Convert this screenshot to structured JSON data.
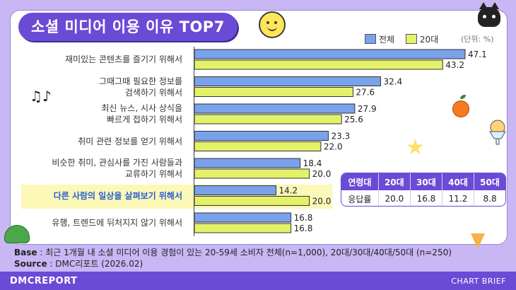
{
  "title": "소셜 미디어 이용 이유 TOP7",
  "legend": {
    "total": "전체",
    "twenties": "20대",
    "unit": "(단위: %)"
  },
  "colors": {
    "total": "#7aa2ea",
    "twenties": "#e4f26a",
    "accent": "#6a4bd6",
    "highlight": "#2d5fd0"
  },
  "chart_data": {
    "type": "bar",
    "orientation": "horizontal",
    "categories": [
      [
        "재미있는 콘텐츠를 즐기기 위해서"
      ],
      [
        "그때그때 필요한 정보를",
        "검색하기 위해서"
      ],
      [
        "최신 뉴스, 시사 상식을",
        "빠르게 접하기 위해서"
      ],
      [
        "취미 관련 정보를 얻기 위해서"
      ],
      [
        "비슷한 취미, 관심사를 가진 사람들과",
        "교류하기 위해서"
      ],
      [
        "다른 사람의 일상을 살펴보기 위해서"
      ],
      [
        "유행, 트렌드에 뒤처지지 않기 위해서"
      ]
    ],
    "highlight_index": 5,
    "series": [
      {
        "name": "전체",
        "values": [
          47.1,
          32.4,
          27.9,
          23.3,
          18.4,
          14.2,
          16.8
        ]
      },
      {
        "name": "20대",
        "values": [
          43.2,
          27.6,
          25.6,
          22.0,
          20.0,
          20.0,
          16.8
        ]
      }
    ],
    "value_labels": [
      [
        "47.1",
        "32.4",
        "27.9",
        "23.3",
        "18.4",
        "14.2",
        "16.8"
      ],
      [
        "43.2",
        "27.6",
        "25.6",
        "22.0",
        "20.0",
        "20.0",
        "16.8"
      ]
    ],
    "xlim": [
      0,
      47.1
    ]
  },
  "inset_table": {
    "headers": [
      "연령대",
      "20대",
      "30대",
      "40대",
      "50대"
    ],
    "row": [
      "응답률",
      "20.0",
      "16.8",
      "11.2",
      "8.8"
    ]
  },
  "footer": {
    "base_label": "Base",
    "base_text": " : 최근 1개월 내 소셜 미디어 이용 경험이 있는 20-59세 소비자 전체(n=1,000), 20대/30대/40대/50대 (n=250)",
    "source_label": "Source",
    "source_text": " : DMC리포트 (2026.02)",
    "brand": "DMCREPORT",
    "brief": "CHART BRIEF"
  }
}
